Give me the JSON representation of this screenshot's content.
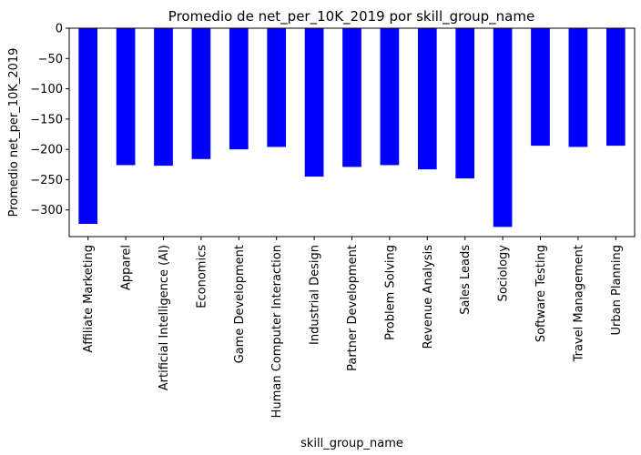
{
  "chart_data": {
    "type": "bar",
    "title": "Promedio de net_per_10K_2019 por skill_group_name",
    "xlabel": "skill_group_name",
    "ylabel": "Promedio net_per_10K_2019",
    "categories": [
      "Affiliate Marketing",
      "Apparel",
      "Artificial Intelligence (AI)",
      "Economics",
      "Game Development",
      "Human Computer Interaction",
      "Industrial Design",
      "Partner Development",
      "Problem Solving",
      "Revenue Analysis",
      "Sales Leads",
      "Sociology",
      "Software Testing",
      "Travel Management",
      "Urban Planning"
    ],
    "values": [
      -323,
      -226,
      -227,
      -216,
      -200,
      -196,
      -245,
      -229,
      -226,
      -233,
      -248,
      -328,
      -194,
      -196,
      -194
    ],
    "yticks": [
      0,
      -50,
      -100,
      -150,
      -200,
      -250,
      -300
    ],
    "ytick_labels": [
      "0",
      "−50",
      "−100",
      "−150",
      "−200",
      "−250",
      "−300"
    ],
    "ylim": [
      -344,
      0
    ],
    "bar_color": "#0000ff",
    "grid": false,
    "legend": false
  }
}
